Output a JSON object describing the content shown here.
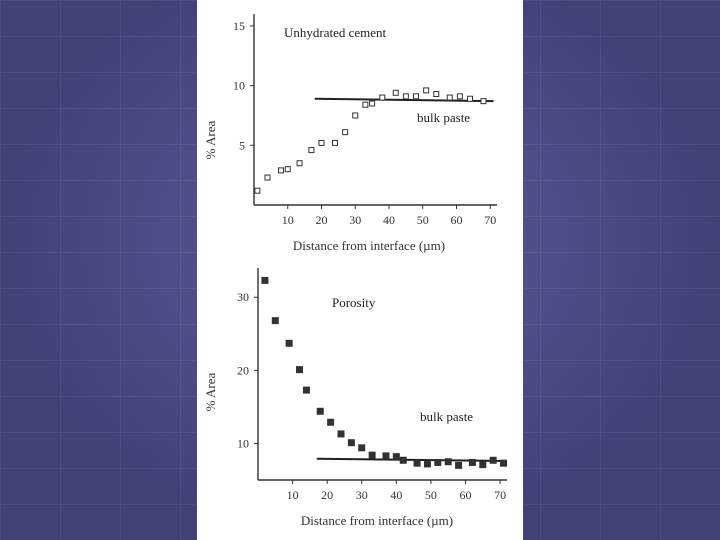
{
  "chart_data": [
    {
      "type": "scatter",
      "annotation": "Unhydrated cement",
      "reference_label": "bulk paste",
      "xlabel": "Distance from interface (µm)",
      "ylabel": "% Area",
      "xticks": [
        10,
        20,
        30,
        40,
        50,
        60,
        70
      ],
      "yticks": [
        5,
        10,
        15
      ],
      "xlim": [
        0,
        72
      ],
      "ylim": [
        0,
        16
      ],
      "marker": "open-square",
      "points": [
        {
          "x": 1,
          "y": 1.2
        },
        {
          "x": 4,
          "y": 2.3
        },
        {
          "x": 8,
          "y": 2.9
        },
        {
          "x": 10,
          "y": 3.0
        },
        {
          "x": 13.5,
          "y": 3.5
        },
        {
          "x": 17,
          "y": 4.6
        },
        {
          "x": 20,
          "y": 5.2
        },
        {
          "x": 24,
          "y": 5.2
        },
        {
          "x": 27,
          "y": 6.1
        },
        {
          "x": 30,
          "y": 7.5
        },
        {
          "x": 33,
          "y": 8.4
        },
        {
          "x": 35,
          "y": 8.5
        },
        {
          "x": 38,
          "y": 9.0
        },
        {
          "x": 42,
          "y": 9.4
        },
        {
          "x": 45,
          "y": 9.1
        },
        {
          "x": 48,
          "y": 9.1
        },
        {
          "x": 51,
          "y": 9.6
        },
        {
          "x": 54,
          "y": 9.3
        },
        {
          "x": 58,
          "y": 9.0
        },
        {
          "x": 61,
          "y": 9.1
        },
        {
          "x": 64,
          "y": 8.9
        },
        {
          "x": 68,
          "y": 8.7
        }
      ],
      "reference_line": {
        "x1": 18,
        "y1": 8.9,
        "x2": 71,
        "y2": 8.7
      }
    },
    {
      "type": "scatter",
      "annotation": "Porosity",
      "reference_label": "bulk paste",
      "xlabel": "Distance from interface (µm)",
      "ylabel": "% Area",
      "xticks": [
        10,
        20,
        30,
        40,
        50,
        60,
        70
      ],
      "yticks": [
        10,
        20,
        30
      ],
      "xlim": [
        0,
        72
      ],
      "ylim": [
        5,
        34
      ],
      "marker": "filled-square",
      "points": [
        {
          "x": 2,
          "y": 32.3
        },
        {
          "x": 5,
          "y": 26.8
        },
        {
          "x": 9,
          "y": 23.7
        },
        {
          "x": 12,
          "y": 20.1
        },
        {
          "x": 14,
          "y": 17.3
        },
        {
          "x": 18,
          "y": 14.4
        },
        {
          "x": 21,
          "y": 12.9
        },
        {
          "x": 24,
          "y": 11.3
        },
        {
          "x": 27,
          "y": 10.1
        },
        {
          "x": 30,
          "y": 9.4
        },
        {
          "x": 33,
          "y": 8.4
        },
        {
          "x": 37,
          "y": 8.3
        },
        {
          "x": 40,
          "y": 8.2
        },
        {
          "x": 42,
          "y": 7.7
        },
        {
          "x": 46,
          "y": 7.3
        },
        {
          "x": 49,
          "y": 7.2
        },
        {
          "x": 52,
          "y": 7.4
        },
        {
          "x": 55,
          "y": 7.5
        },
        {
          "x": 58,
          "y": 7.0
        },
        {
          "x": 62,
          "y": 7.4
        },
        {
          "x": 65,
          "y": 7.1
        },
        {
          "x": 68,
          "y": 7.7
        },
        {
          "x": 71,
          "y": 7.3
        }
      ],
      "reference_line": {
        "x1": 17,
        "y1": 7.9,
        "x2": 72,
        "y2": 7.6
      }
    }
  ]
}
